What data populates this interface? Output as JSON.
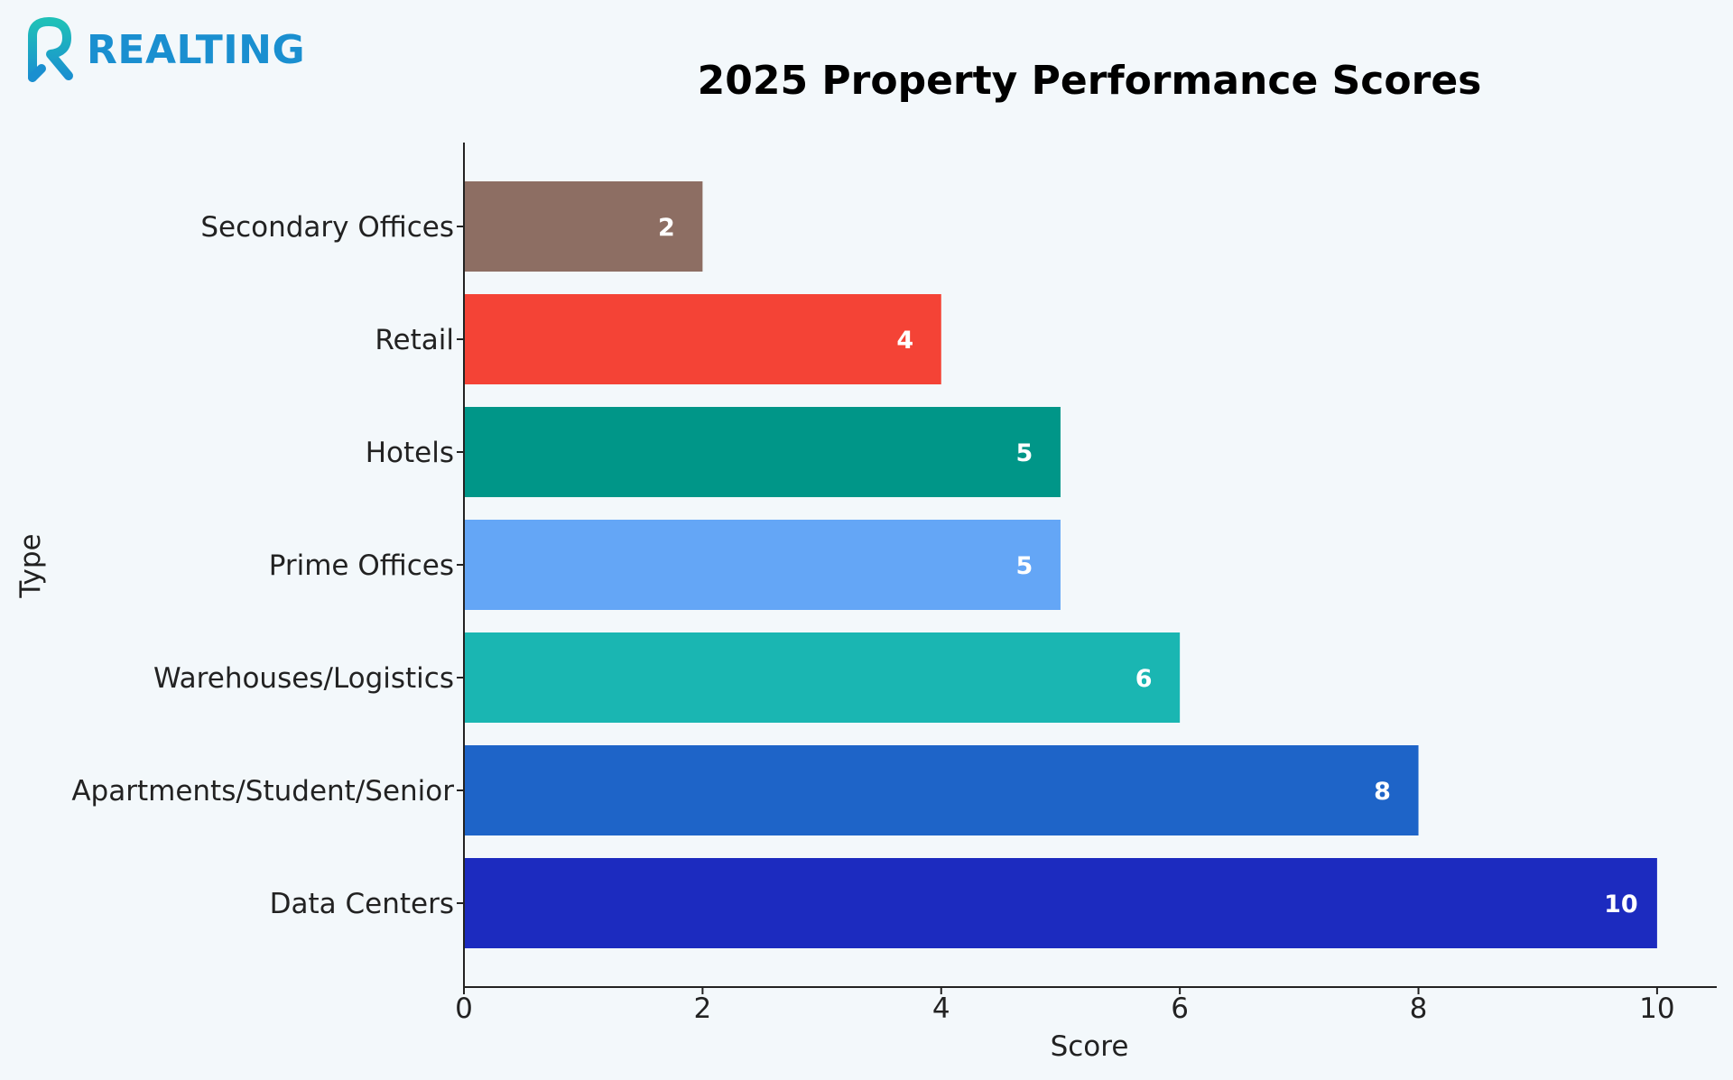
{
  "brand": {
    "name": "REALTING",
    "colors": {
      "mark_top": "#1fc0b8",
      "mark_bottom": "#1a8fd0",
      "text": "#1a8fd0"
    }
  },
  "chart_data": {
    "type": "bar",
    "orientation": "horizontal",
    "title": "2025 Property Performance Scores",
    "xlabel": "Score",
    "ylabel": "Type",
    "xlim": [
      0,
      10.5
    ],
    "xticks": [
      0,
      2,
      4,
      6,
      8,
      10
    ],
    "grid": false,
    "legend": "none",
    "categories": [
      "Secondary Offices",
      "Retail",
      "Hotels",
      "Prime Offices",
      "Warehouses/Logistics",
      "Apartments/Student/Senior",
      "Data Centers"
    ],
    "values": [
      2,
      4,
      5,
      5,
      6,
      8,
      10
    ],
    "colors": [
      "#8d6e63",
      "#f44336",
      "#009688",
      "#64a6f6",
      "#1ab6b2",
      "#1e64c8",
      "#1c2bbf"
    ],
    "data_labels": [
      "2",
      "4",
      "5",
      "5",
      "6",
      "8",
      "10"
    ]
  }
}
